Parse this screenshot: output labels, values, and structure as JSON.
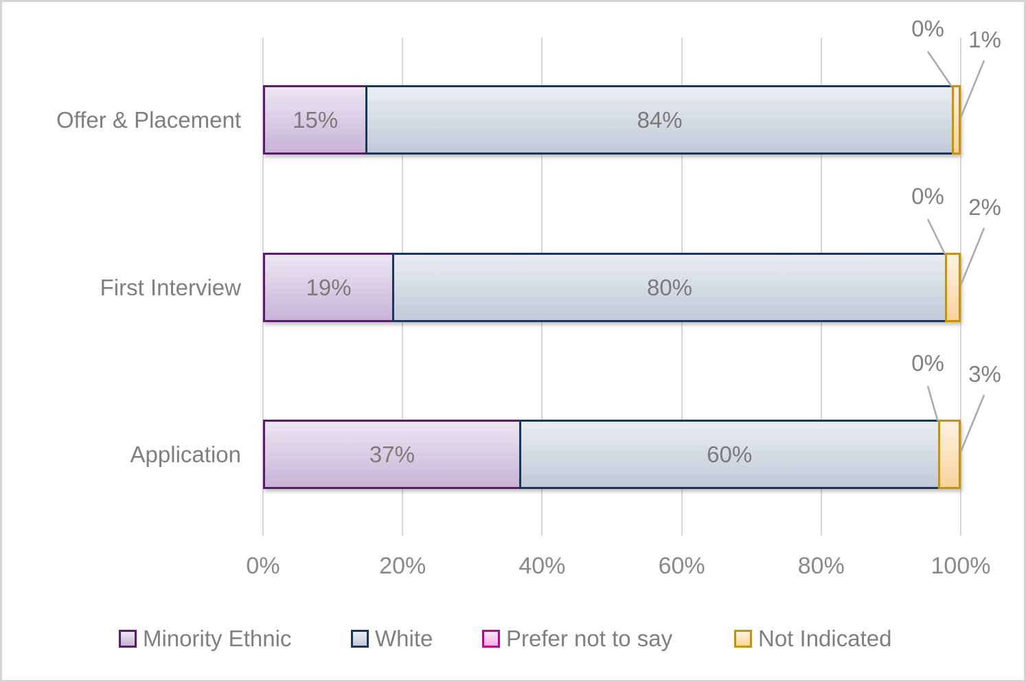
{
  "chart_data": {
    "type": "bar",
    "orientation": "horizontal-stacked",
    "title": "",
    "xlabel": "",
    "ylabel": "",
    "xlim": [
      0,
      100
    ],
    "x_ticks": [
      "0%",
      "20%",
      "40%",
      "60%",
      "80%",
      "100%"
    ],
    "grid": "vertical",
    "legend_position": "bottom",
    "categories": [
      "Offer & Placement",
      "First Interview",
      "Application"
    ],
    "series": [
      {
        "name": "Minority Ethnic",
        "key": "minority-ethnic",
        "values": [
          15,
          19,
          37
        ]
      },
      {
        "name": "White",
        "key": "white",
        "values": [
          84,
          80,
          60
        ]
      },
      {
        "name": "Prefer not to say",
        "key": "prefer-not-to-say",
        "values": [
          0,
          0,
          0
        ]
      },
      {
        "name": "Not Indicated",
        "key": "not-indicated",
        "values": [
          1,
          2,
          3
        ]
      }
    ],
    "data_labels": {
      "inside": [
        [
          "15%",
          "84%"
        ],
        [
          "19%",
          "80%"
        ],
        [
          "37%",
          "60%"
        ]
      ],
      "callouts": [
        [
          "0%",
          "1%"
        ],
        [
          "0%",
          "2%"
        ],
        [
          "0%",
          "3%"
        ]
      ]
    },
    "legend": [
      "Minority Ethnic",
      "White",
      "Prefer not to say",
      "Not Indicated"
    ]
  },
  "colors": {
    "series": [
      {
        "border": "#5a1a6e",
        "fill_top": "#ece6f2",
        "fill_bottom": "#c7b3d7"
      },
      {
        "border": "#17375e",
        "fill_top": "#e9edf2",
        "fill_bottom": "#c1cad7"
      },
      {
        "border": "#c00091",
        "fill_top": "#fce9f6",
        "fill_bottom": "#f6aee2"
      },
      {
        "border": "#c89200",
        "fill_top": "#fdf3e2",
        "fill_bottom": "#fad29c"
      }
    ],
    "gridline": "#d7d7d7",
    "axis_text": "#898989",
    "label_text": "#7f7f7f",
    "leader_line": "#a9a9a9"
  }
}
